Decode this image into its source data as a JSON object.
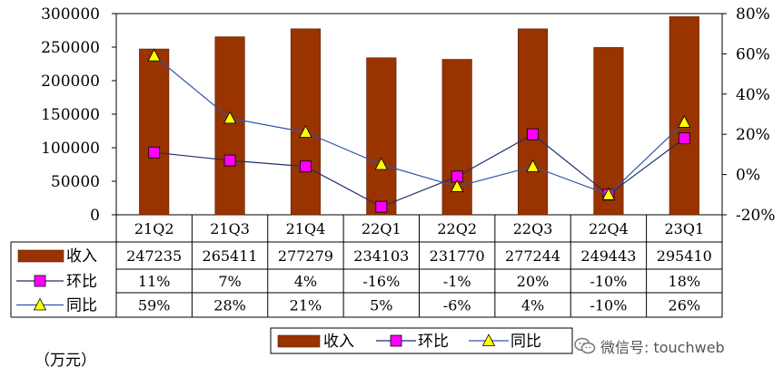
{
  "chart_data": {
    "type": "bar",
    "categories": [
      "21Q2",
      "21Q3",
      "21Q4",
      "22Q1",
      "22Q2",
      "22Q3",
      "22Q4",
      "23Q1"
    ],
    "series": [
      {
        "name": "收入",
        "kind": "bar",
        "axis": "left",
        "color": "#993300",
        "values": [
          247235,
          265411,
          277279,
          234103,
          231770,
          277244,
          249443,
          295410
        ],
        "labels": [
          "247235",
          "265411",
          "277279",
          "234103",
          "231770",
          "277244",
          "249443",
          "295410"
        ]
      },
      {
        "name": "环比",
        "kind": "line",
        "axis": "right",
        "marker": "square",
        "color": "#FF00FF",
        "line_color": "#1F2F6F",
        "values": [
          11,
          7,
          4,
          -16,
          -1,
          20,
          -10,
          18
        ],
        "labels": [
          "11%",
          "7%",
          "4%",
          "-16%",
          "-1%",
          "20%",
          "-10%",
          "18%"
        ]
      },
      {
        "name": "同比",
        "kind": "line",
        "axis": "right",
        "marker": "triangle",
        "color": "#FFFF00",
        "line_color": "#3355AA",
        "values": [
          59,
          28,
          21,
          5,
          -6,
          4,
          -10,
          26
        ],
        "labels": [
          "59%",
          "28%",
          "21%",
          "5%",
          "-6%",
          "4%",
          "-10%",
          "26%"
        ]
      }
    ],
    "y_left": {
      "min": 0,
      "max": 300000,
      "ticks": [
        "0",
        "50000",
        "100000",
        "150000",
        "200000",
        "250000",
        "300000"
      ]
    },
    "y_right": {
      "min": -20,
      "max": 80,
      "ticks": [
        "-20%",
        "0%",
        "20%",
        "40%",
        "60%",
        "80%"
      ]
    },
    "legend": [
      "收入",
      "环比",
      "同比"
    ],
    "legend_position": "bottom-center",
    "grid": false
  },
  "unit_label": "（万元）",
  "watermark": "微信号: touchweb"
}
